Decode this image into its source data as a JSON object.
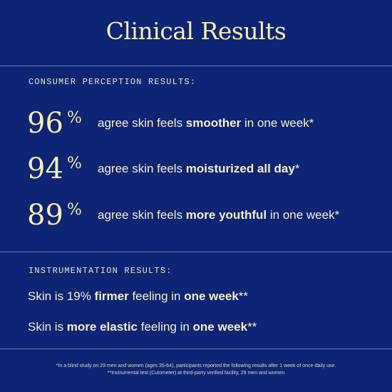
{
  "title": "Clinical Results",
  "consumer_section": {
    "label": "CONSUMER PERCEPTION RESULTS:",
    "stats": [
      {
        "number": "96",
        "percent": "%",
        "pre": "agree skin feels ",
        "bold": "smoother",
        "post": " in one week*"
      },
      {
        "number": "94",
        "percent": "%",
        "pre": "agree skin feels ",
        "bold": "moisturized all day",
        "post": "*"
      },
      {
        "number": "89",
        "percent": "%",
        "pre": "agree skin feels ",
        "bold": "more youthful",
        "post": " in one week*"
      }
    ]
  },
  "instrumentation_section": {
    "label": "INSTRUMENTATION RESULTS:",
    "lines": [
      {
        "a": "Skin is 19% ",
        "b": "firmer",
        "c": " feeling in ",
        "d": "one week",
        "e": "**"
      },
      {
        "a": "Skin is ",
        "b": "more elastic",
        "c": " feeling in ",
        "d": "one week",
        "e": "**"
      }
    ]
  },
  "footnotes": [
    "*In a blind study on 29 men and women (ages 35-64), participants reported the following results after 1 week of once-daily use.",
    "**Instrumental test (Cutometer) at third-party verified facility, 29 men and women"
  ],
  "colors": {
    "background": "#0e2474",
    "accent": "#f3efb0",
    "rule": "#6f7fb8"
  }
}
